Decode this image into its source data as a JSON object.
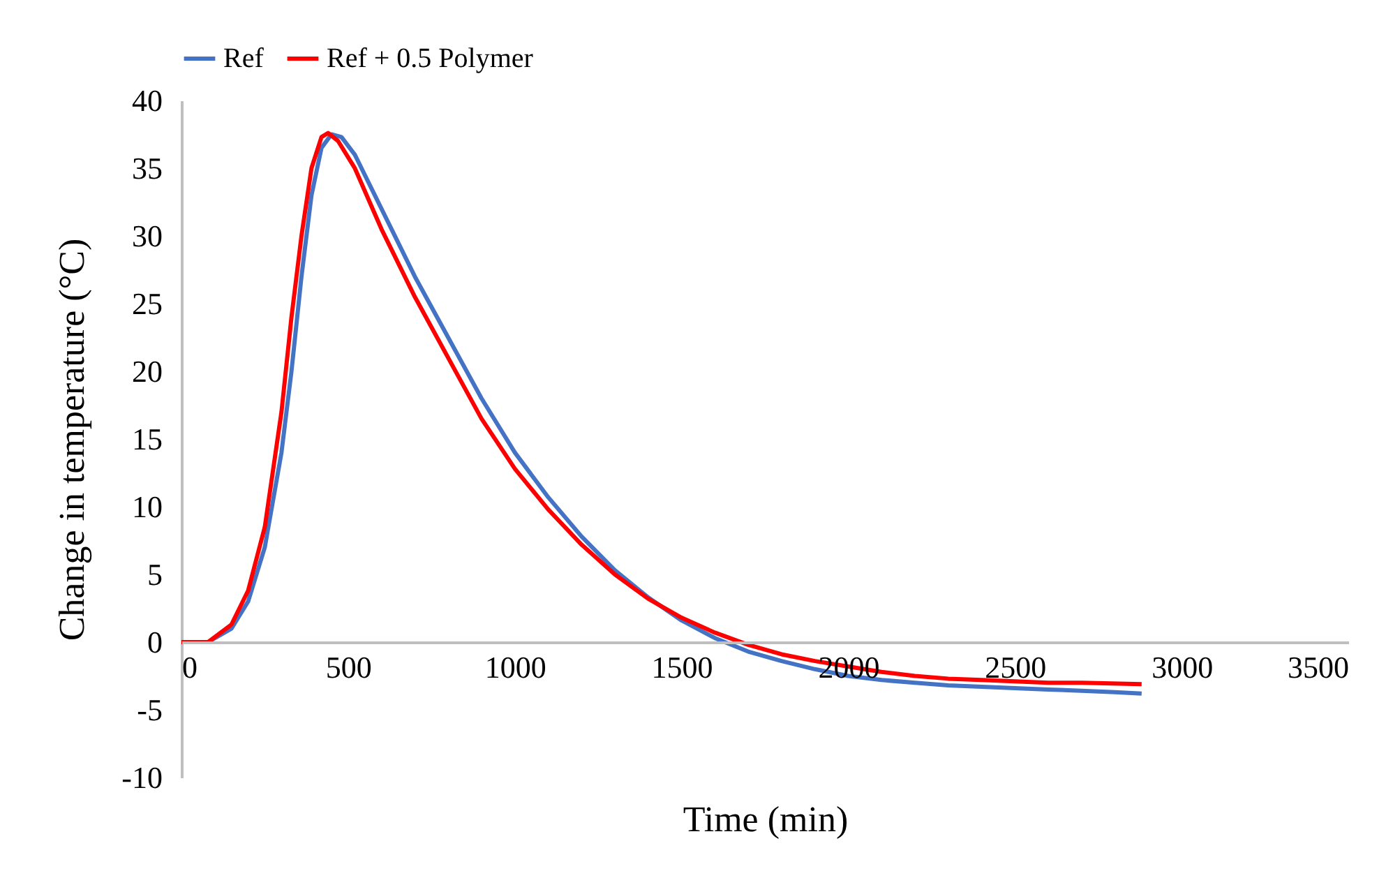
{
  "chart_data": {
    "type": "line",
    "xlabel": "Time (min)",
    "ylabel": "Change in temperature (°C)",
    "xlim": [
      0,
      3500
    ],
    "xticks": [
      0,
      500,
      1000,
      1500,
      2000,
      2500,
      3000,
      3500
    ],
    "ylim": [
      -10,
      40
    ],
    "yticks": [
      -10,
      -5,
      0,
      5,
      10,
      15,
      20,
      25,
      30,
      35,
      40
    ],
    "grid": false,
    "legend": "top",
    "marker": "none",
    "line_style": "solid",
    "series": [
      {
        "name": "Ref",
        "color": "#4472c4",
        "x": [
          0,
          80,
          150,
          200,
          250,
          300,
          330,
          360,
          390,
          420,
          450,
          480,
          520,
          600,
          700,
          800,
          900,
          1000,
          1100,
          1200,
          1300,
          1400,
          1500,
          1600,
          1700,
          1800,
          1900,
          2000,
          2100,
          2200,
          2300,
          2400,
          2500,
          2600,
          2700,
          2800,
          2880
        ],
        "values": [
          0,
          0,
          1,
          3,
          7,
          14,
          20,
          27,
          33,
          36.5,
          37.5,
          37.3,
          36,
          32,
          27,
          22.5,
          18,
          14,
          10.7,
          7.8,
          5.3,
          3.3,
          1.6,
          0.3,
          -0.7,
          -1.4,
          -2,
          -2.5,
          -2.8,
          -3,
          -3.2,
          -3.3,
          -3.4,
          -3.5,
          -3.6,
          -3.7,
          -3.8
        ]
      },
      {
        "name": "Ref + 0.5 Polymer",
        "color": "#ff0000",
        "x": [
          0,
          80,
          150,
          200,
          250,
          300,
          330,
          360,
          390,
          420,
          440,
          470,
          520,
          600,
          700,
          800,
          900,
          1000,
          1100,
          1200,
          1300,
          1400,
          1500,
          1600,
          1700,
          1800,
          1900,
          2000,
          2100,
          2200,
          2300,
          2400,
          2500,
          2600,
          2700,
          2880
        ],
        "values": [
          0,
          0,
          1.3,
          3.8,
          8.5,
          17,
          24,
          30,
          35,
          37.3,
          37.6,
          37,
          35,
          30.5,
          25.5,
          21,
          16.5,
          12.8,
          9.8,
          7.2,
          5,
          3.2,
          1.8,
          0.7,
          -0.2,
          -0.9,
          -1.4,
          -1.8,
          -2.2,
          -2.5,
          -2.7,
          -2.8,
          -2.9,
          -3,
          -3,
          -3.1
        ]
      }
    ]
  }
}
